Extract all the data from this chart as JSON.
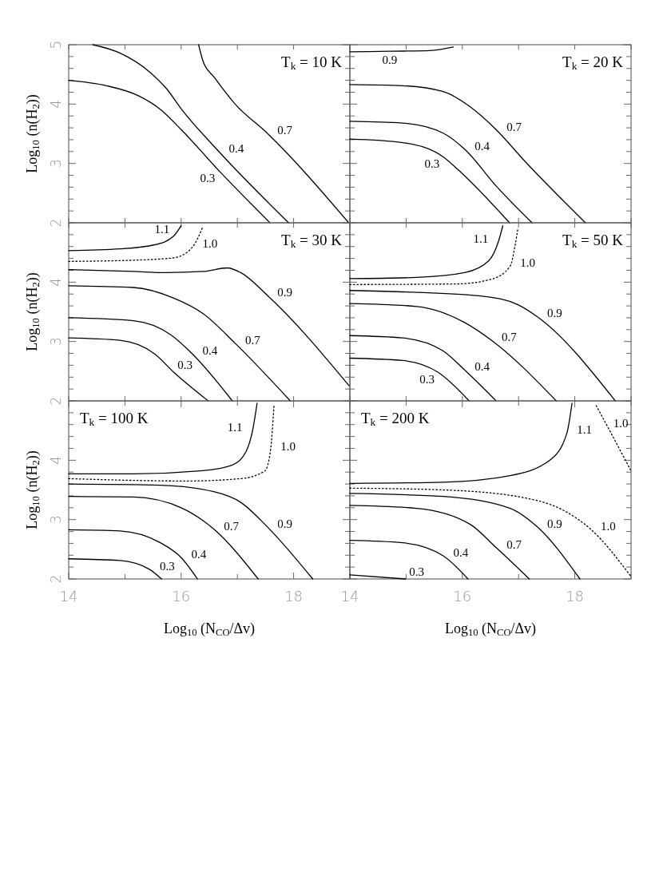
{
  "chart_data": [
    {
      "type": "line",
      "title": "T$_{k}$ = 10 K",
      "ylabel": "Log$_{10}$ (n(H$_{2}$))",
      "xlim": [
        14,
        19
      ],
      "ylim": [
        2,
        5
      ],
      "tick_labels": "y",
      "xticks": [
        {
          "value": 14,
          "label": null
        },
        {
          "value": 15,
          "label": null
        },
        {
          "value": 16,
          "label": null
        },
        {
          "value": 17,
          "label": null
        },
        {
          "value": 18,
          "label": null
        },
        {
          "value": 19,
          "label": null
        }
      ],
      "yticks": [
        2,
        {
          "value": 2.2,
          "label": null
        },
        {
          "value": 2.4,
          "label": null
        },
        {
          "value": 2.6,
          "label": null
        },
        {
          "value": 2.8,
          "label": null
        },
        3,
        {
          "value": 3.2,
          "label": null
        },
        {
          "value": 3.4,
          "label": null
        },
        {
          "value": 3.6,
          "label": null
        },
        {
          "value": 3.8,
          "label": null
        },
        4,
        {
          "value": 4.2,
          "label": null
        },
        {
          "value": 4.4,
          "label": null
        },
        {
          "value": 4.6,
          "label": null
        },
        {
          "value": 4.8,
          "label": null
        },
        5
      ],
      "series": [
        {
          "color": "#000000",
          "line_style": "solid",
          "x": [
            14,
            14.67,
            15.24,
            15.63,
            16.01,
            16.67,
            17.58
          ],
          "values": [
            4.4,
            4.31,
            4.14,
            3.91,
            3.56,
            2.88,
            2.0
          ]
        },
        {
          "color": "#000000",
          "line_style": "solid",
          "x": [
            14.43,
            14.91,
            15.44,
            15.73,
            16.01,
            16.67,
            17.91
          ],
          "values": [
            5.0,
            4.86,
            4.54,
            4.27,
            3.91,
            3.2,
            2.0
          ]
        },
        {
          "color": "#000000",
          "line_style": "solid",
          "x": [
            16.31,
            16.39,
            16.59,
            16.96,
            17.53,
            18.98
          ],
          "values": [
            5.0,
            4.72,
            4.45,
            4.0,
            3.51,
            2.0
          ]
        }
      ],
      "annotations": [
        {
          "text": "0.3",
          "x": 16.67,
          "y": 2.88
        },
        {
          "text": "0.4",
          "x": 16.67,
          "y": 3.2
        },
        {
          "text": "0.7",
          "x": 17.53,
          "y": 3.51
        }
      ]
    },
    {
      "type": "line",
      "title": "T$_{k}$ = 20 K",
      "xlim": [
        14,
        19
      ],
      "ylim": [
        2,
        5
      ],
      "tick_labels": false,
      "xticks": [
        {
          "value": 14,
          "label": null
        },
        {
          "value": 15,
          "label": null
        },
        {
          "value": 16,
          "label": null
        },
        {
          "value": 17,
          "label": null
        },
        {
          "value": 18,
          "label": null
        },
        {
          "value": 19,
          "label": null
        }
      ],
      "yticks": [
        2,
        {
          "value": 2.2,
          "label": null
        },
        {
          "value": 2.4,
          "label": null
        },
        {
          "value": 2.6,
          "label": null
        },
        {
          "value": 2.8,
          "label": null
        },
        3,
        {
          "value": 3.2,
          "label": null
        },
        {
          "value": 3.4,
          "label": null
        },
        {
          "value": 3.6,
          "label": null
        },
        {
          "value": 3.8,
          "label": null
        },
        4,
        {
          "value": 4.2,
          "label": null
        },
        {
          "value": 4.4,
          "label": null
        },
        {
          "value": 4.6,
          "label": null
        },
        {
          "value": 4.8,
          "label": null
        },
        5
      ],
      "series": [
        {
          "color": "#000000",
          "line_style": "solid",
          "x": [
            14,
            14.71,
            15.42,
            15.84
          ],
          "values": [
            4.88,
            4.89,
            4.9,
            4.96
          ]
        },
        {
          "color": "#000000",
          "line_style": "solid",
          "x": [
            14,
            14.94,
            15.66,
            16.13,
            16.61,
            17.09,
            18.19
          ],
          "values": [
            4.33,
            4.31,
            4.21,
            3.96,
            3.56,
            3.06,
            2.0
          ]
        },
        {
          "color": "#000000",
          "line_style": "solid",
          "x": [
            14,
            14.94,
            15.66,
            16.04,
            16.61,
            17.24
          ],
          "values": [
            3.71,
            3.68,
            3.51,
            3.24,
            2.61,
            2.0
          ]
        },
        {
          "color": "#000000",
          "line_style": "solid",
          "x": [
            14,
            14.94,
            15.66,
            15.94,
            16.84
          ],
          "values": [
            3.41,
            3.35,
            3.11,
            2.88,
            2.0
          ]
        }
      ],
      "annotations": [
        {
          "text": "0.9",
          "x": 14.71,
          "y": 4.89
        },
        {
          "text": "0.7",
          "x": 16.61,
          "y": 3.56
        },
        {
          "text": "0.4",
          "x": 16.04,
          "y": 3.24
        },
        {
          "text": "0.3",
          "x": 15.66,
          "y": 3.11
        }
      ]
    },
    {
      "type": "line",
      "title": "T$_{k}$ = 30 K",
      "ylabel": "Log$_{10}$ (n(H$_{2}$))",
      "xlim": [
        14,
        19
      ],
      "ylim": [
        2,
        5
      ],
      "tick_labels": "y",
      "xticks": [
        {
          "value": 14,
          "label": null
        },
        {
          "value": 15,
          "label": null
        },
        {
          "value": 16,
          "label": null
        },
        {
          "value": 17,
          "label": null
        },
        {
          "value": 18,
          "label": null
        },
        {
          "value": 19,
          "label": null
        }
      ],
      "yticks": [
        2,
        {
          "value": 2.2,
          "label": null
        },
        {
          "value": 2.4,
          "label": null
        },
        {
          "value": 2.6,
          "label": null
        },
        {
          "value": 2.8,
          "label": null
        },
        3,
        {
          "value": 3.2,
          "label": null
        },
        {
          "value": 3.4,
          "label": null
        },
        {
          "value": 3.6,
          "label": null
        },
        {
          "value": 3.8,
          "label": null
        },
        4,
        {
          "value": 4.2,
          "label": null
        },
        {
          "value": 4.4,
          "label": null
        },
        {
          "value": 4.6,
          "label": null
        },
        {
          "value": 4.8,
          "label": null
        },
        {
          "value": 5,
          "label": null
        }
      ],
      "series": [
        {
          "color": "#000000",
          "line_style": "solid",
          "x": [
            14,
            14.91,
            15.53,
            15.86,
            16.0
          ],
          "values": [
            4.53,
            4.56,
            4.63,
            4.77,
            4.95
          ]
        },
        {
          "color": "#000000",
          "line_style": "dotted",
          "x": [
            14,
            15.15,
            15.87,
            16.2,
            16.38
          ],
          "values": [
            4.35,
            4.37,
            4.41,
            4.59,
            4.92
          ]
        },
        {
          "color": "#000000",
          "line_style": "solid",
          "x": [
            14,
            15.15,
            15.72,
            16.39,
            16.82,
            17.06,
            17.53,
            18.99
          ],
          "values": [
            4.21,
            4.18,
            4.16,
            4.18,
            4.24,
            4.16,
            3.78,
            2.25
          ]
        },
        {
          "color": "#000000",
          "line_style": "solid",
          "x": [
            14,
            15.15,
            15.87,
            16.39,
            16.96,
            17.94
          ],
          "values": [
            3.94,
            3.91,
            3.73,
            3.47,
            2.97,
            2.0
          ]
        },
        {
          "color": "#000000",
          "line_style": "solid",
          "x": [
            14,
            15.15,
            15.82,
            16.2,
            16.91
          ],
          "values": [
            3.4,
            3.35,
            3.11,
            2.79,
            2.0
          ]
        },
        {
          "color": "#000000",
          "line_style": "solid",
          "x": [
            14,
            14.91,
            15.53,
            15.87,
            16.48
          ],
          "values": [
            3.06,
            3.02,
            2.79,
            2.48,
            2.0
          ]
        }
      ],
      "annotations": [
        {
          "text": "1.1",
          "x": 15.86,
          "y": 4.77
        },
        {
          "text": "1.0",
          "x": 16.2,
          "y": 4.59
        },
        {
          "text": "0.9",
          "x": 17.53,
          "y": 3.78
        },
        {
          "text": "0.7",
          "x": 16.96,
          "y": 2.97
        },
        {
          "text": "0.4",
          "x": 16.2,
          "y": 2.79
        },
        {
          "text": "0.3",
          "x": 15.87,
          "y": 2.48
        }
      ]
    },
    {
      "type": "line",
      "title": "T$_{k}$ = 50 K",
      "xlim": [
        14,
        19
      ],
      "ylim": [
        2,
        5
      ],
      "tick_labels": false,
      "xticks": [
        {
          "value": 14,
          "label": null
        },
        {
          "value": 15,
          "label": null
        },
        {
          "value": 16,
          "label": null
        },
        {
          "value": 17,
          "label": null
        },
        {
          "value": 18,
          "label": null
        },
        {
          "value": 19,
          "label": null
        }
      ],
      "yticks": [
        2,
        {
          "value": 2.2,
          "label": null
        },
        {
          "value": 2.4,
          "label": null
        },
        {
          "value": 2.6,
          "label": null
        },
        {
          "value": 2.8,
          "label": null
        },
        3,
        {
          "value": 3.2,
          "label": null
        },
        {
          "value": 3.4,
          "label": null
        },
        {
          "value": 3.6,
          "label": null
        },
        {
          "value": 3.8,
          "label": null
        },
        4,
        {
          "value": 4.2,
          "label": null
        },
        {
          "value": 4.4,
          "label": null
        },
        {
          "value": 4.6,
          "label": null
        },
        {
          "value": 4.8,
          "label": null
        },
        {
          "value": 5,
          "label": null
        }
      ],
      "series": [
        {
          "color": "#000000",
          "line_style": "solid",
          "x": [
            14,
            15.19,
            16.04,
            16.47,
            16.64,
            16.72
          ],
          "values": [
            4.06,
            4.08,
            4.16,
            4.36,
            4.68,
            4.95
          ]
        },
        {
          "color": "#000000",
          "line_style": "dotted",
          "x": [
            14,
            15.9,
            16.52,
            16.85,
            16.94,
            16.99
          ],
          "values": [
            3.96,
            3.97,
            4.05,
            4.27,
            4.63,
            4.92
          ]
        },
        {
          "color": "#000000",
          "line_style": "solid",
          "x": [
            14,
            15.13,
            16.38,
            16.99,
            17.33,
            18.72
          ],
          "values": [
            3.86,
            3.83,
            3.76,
            3.62,
            3.42,
            2.0
          ]
        },
        {
          "color": "#000000",
          "line_style": "solid",
          "x": [
            14,
            15.19,
            16.04,
            16.52,
            17.67
          ],
          "values": [
            3.64,
            3.59,
            3.32,
            3.02,
            2.0
          ]
        },
        {
          "color": "#000000",
          "line_style": "solid",
          "x": [
            14,
            14.94,
            15.66,
            16.04,
            16.6
          ],
          "values": [
            3.1,
            3.06,
            2.84,
            2.52,
            2.0
          ]
        },
        {
          "color": "#000000",
          "line_style": "solid",
          "x": [
            14,
            14.94,
            15.57,
            16.12
          ],
          "values": [
            2.72,
            2.68,
            2.48,
            2.0
          ]
        }
      ],
      "annotations": [
        {
          "text": "1.1",
          "x": 16.64,
          "y": 4.68
        },
        {
          "text": "1.0",
          "x": 16.85,
          "y": 4.27
        },
        {
          "text": "0.9",
          "x": 17.33,
          "y": 3.42
        },
        {
          "text": "0.7",
          "x": 16.52,
          "y": 3.02
        },
        {
          "text": "0.4",
          "x": 16.04,
          "y": 2.52
        },
        {
          "text": "0.3",
          "x": 15.57,
          "y": 2.48
        }
      ]
    },
    {
      "type": "line",
      "title": "T$_{k}$ = 100 K",
      "xlabel": "Log$_{10}$ (N$_{CO}$/Δv)",
      "ylabel": "Log$_{10}$ (n(H$_{2}$))",
      "xlim": [
        14,
        19
      ],
      "ylim": [
        2,
        5
      ],
      "xticks": [
        14,
        {
          "value": 15,
          "label": null
        },
        16,
        {
          "value": 17,
          "label": null
        },
        18,
        {
          "value": 19,
          "label": null
        }
      ],
      "yticks": [
        2,
        {
          "value": 2.2,
          "label": null
        },
        {
          "value": 2.4,
          "label": null
        },
        {
          "value": 2.6,
          "label": null
        },
        {
          "value": 2.8,
          "label": null
        },
        3,
        {
          "value": 3.2,
          "label": null
        },
        {
          "value": 3.4,
          "label": null
        },
        {
          "value": 3.6,
          "label": null
        },
        {
          "value": 3.8,
          "label": null
        },
        4,
        {
          "value": 4.2,
          "label": null
        },
        {
          "value": 4.4,
          "label": null
        },
        {
          "value": 4.6,
          "label": null
        },
        {
          "value": 4.8,
          "label": null
        },
        {
          "value": 5,
          "label": null
        }
      ],
      "series": [
        {
          "color": "#000000",
          "line_style": "solid",
          "x": [
            14,
            15.15,
            16.34,
            16.91,
            17.15,
            17.27,
            17.35
          ],
          "values": [
            3.77,
            3.77,
            3.82,
            3.92,
            4.14,
            4.5,
            4.96
          ]
        },
        {
          "color": "#000000",
          "line_style": "dotted",
          "x": [
            14,
            16.1,
            17.06,
            17.49,
            17.59,
            17.65
          ],
          "values": [
            3.69,
            3.65,
            3.69,
            3.82,
            4.18,
            4.91
          ]
        },
        {
          "color": "#000000",
          "line_style": "solid",
          "x": [
            14,
            15.63,
            16.58,
            17.06,
            17.53,
            18.34
          ],
          "values": [
            3.6,
            3.58,
            3.47,
            3.29,
            2.88,
            2.0
          ]
        },
        {
          "color": "#000000",
          "line_style": "solid",
          "x": [
            14,
            15.15,
            16.0,
            16.58,
            17.37
          ],
          "values": [
            3.39,
            3.38,
            3.2,
            2.84,
            2.0
          ]
        },
        {
          "color": "#000000",
          "line_style": "solid",
          "x": [
            14,
            14.91,
            15.63,
            16.0,
            16.29
          ],
          "values": [
            2.83,
            2.81,
            2.61,
            2.36,
            2.0
          ]
        },
        {
          "color": "#000000",
          "line_style": "solid",
          "x": [
            14,
            14.91,
            15.44,
            15.65
          ],
          "values": [
            2.34,
            2.31,
            2.16,
            2.0
          ]
        }
      ],
      "annotations": [
        {
          "text": "1.1",
          "x": 17.27,
          "y": 4.5
        },
        {
          "text": "1.0",
          "x": 17.59,
          "y": 4.18
        },
        {
          "text": "0.9",
          "x": 17.53,
          "y": 2.88
        },
        {
          "text": "0.7",
          "x": 16.58,
          "y": 2.84
        },
        {
          "text": "0.4",
          "x": 16.0,
          "y": 2.36
        },
        {
          "text": "0.3",
          "x": 15.44,
          "y": 2.16
        }
      ]
    },
    {
      "type": "line",
      "title": "T$_{k}$ = 200 K",
      "xlabel": "Log$_{10}$ (N$_{CO}$/Δv)",
      "xlim": [
        14,
        19
      ],
      "ylim": [
        2,
        5
      ],
      "tick_labels": "x",
      "xticks": [
        14,
        {
          "value": 15,
          "label": null
        },
        16,
        {
          "value": 17,
          "label": null
        },
        18,
        {
          "value": 19,
          "label": null
        }
      ],
      "yticks": [
        2,
        {
          "value": 2.2,
          "label": null
        },
        {
          "value": 2.4,
          "label": null
        },
        {
          "value": 2.6,
          "label": null
        },
        {
          "value": 2.8,
          "label": null
        },
        3,
        {
          "value": 3.2,
          "label": null
        },
        {
          "value": 3.4,
          "label": null
        },
        {
          "value": 3.6,
          "label": null
        },
        {
          "value": 3.8,
          "label": null
        },
        4,
        {
          "value": 4.2,
          "label": null
        },
        {
          "value": 4.4,
          "label": null
        },
        {
          "value": 4.6,
          "label": null
        },
        {
          "value": 4.8,
          "label": null
        },
        {
          "value": 5,
          "label": null
        }
      ],
      "series": [
        {
          "color": "#000000",
          "line_style": "solid",
          "x": [
            14,
            15.66,
            16.85,
            17.57,
            17.86,
            17.95
          ],
          "values": [
            3.61,
            3.63,
            3.74,
            4.01,
            4.46,
            4.96
          ]
        },
        {
          "color": "#000000",
          "line_style": "dotted",
          "x": [
            14,
            15.66,
            17.09,
            17.81,
            18.28,
            19.0
          ],
          "values": [
            3.53,
            3.5,
            3.37,
            3.15,
            2.84,
            2.04
          ]
        },
        {
          "color": "#000000",
          "line_style": "dotted",
          "x": [
            18.38,
            18.62,
            19.0
          ],
          "values": [
            4.92,
            4.5,
            3.82
          ]
        },
        {
          "color": "#000000",
          "line_style": "solid",
          "x": [
            14,
            15.66,
            16.85,
            17.33,
            18.09
          ],
          "values": [
            3.44,
            3.39,
            3.19,
            2.88,
            2.0
          ]
        },
        {
          "color": "#000000",
          "line_style": "solid",
          "x": [
            14,
            15.19,
            16.14,
            16.61,
            17.19
          ],
          "values": [
            3.24,
            3.19,
            2.92,
            2.52,
            2.0
          ]
        },
        {
          "color": "#000000",
          "line_style": "solid",
          "x": [
            14,
            14.94,
            15.66,
            16.1
          ],
          "values": [
            2.65,
            2.61,
            2.39,
            2.0
          ]
        },
        {
          "color": "#000000",
          "line_style": "solid",
          "x": [
            14,
            14.99
          ],
          "values": [
            2.07,
            2.0
          ]
        }
      ],
      "annotations": [
        {
          "text": "1.1",
          "x": 17.86,
          "y": 4.46
        },
        {
          "text": "1.0",
          "x": 18.62,
          "y": 4.5
        },
        {
          "text": "1.0",
          "x": 18.28,
          "y": 2.84
        },
        {
          "text": "0.9",
          "x": 17.33,
          "y": 2.88
        },
        {
          "text": "0.7",
          "x": 16.61,
          "y": 2.52
        },
        {
          "text": "0.4",
          "x": 15.66,
          "y": 2.39
        },
        {
          "text": "0.3",
          "x": 14.99,
          "y": 2.0
        }
      ]
    }
  ]
}
